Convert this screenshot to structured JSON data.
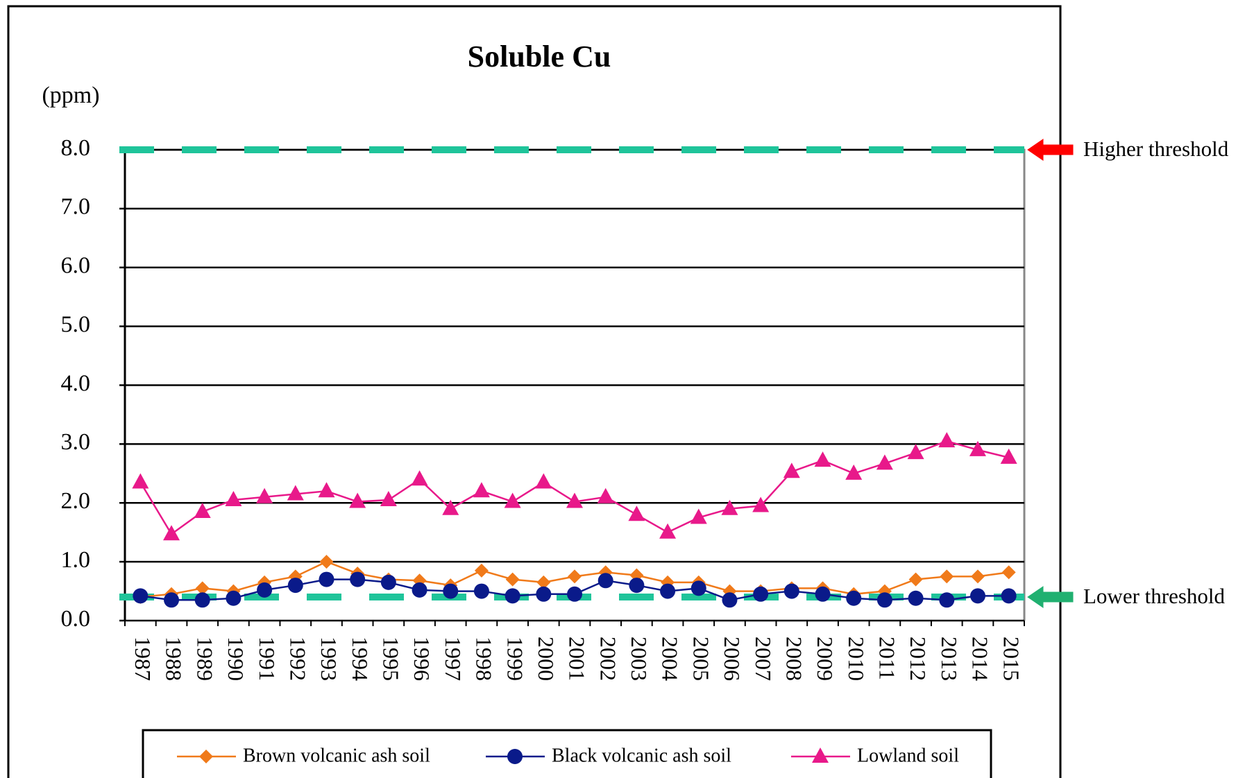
{
  "chart_data": {
    "type": "line",
    "title": "Soluble Cu",
    "y_label": "(ppm)",
    "categories": [
      "1987",
      "1988",
      "1989",
      "1990",
      "1991",
      "1992",
      "1993",
      "1994",
      "1995",
      "1996",
      "1997",
      "1998",
      "1999",
      "2000",
      "2001",
      "2002",
      "2003",
      "2004",
      "2005",
      "2006",
      "2007",
      "2008",
      "2009",
      "2010",
      "2011",
      "2012",
      "2013",
      "2014",
      "2015"
    ],
    "series": [
      {
        "name": "Brown volcanic ash soil",
        "color": "#f07a1a",
        "marker": "diamond",
        "values": [
          0.4,
          0.45,
          0.55,
          0.5,
          0.65,
          0.75,
          1.0,
          0.8,
          0.7,
          0.68,
          0.6,
          0.85,
          0.7,
          0.65,
          0.75,
          0.82,
          0.77,
          0.65,
          0.65,
          0.5,
          0.5,
          0.55,
          0.55,
          0.45,
          0.5,
          0.7,
          0.75,
          0.75,
          0.82
        ]
      },
      {
        "name": "Black volcanic ash soil",
        "color": "#0a1a8a",
        "marker": "circle",
        "values": [
          0.42,
          0.35,
          0.35,
          0.38,
          0.52,
          0.6,
          0.7,
          0.7,
          0.65,
          0.52,
          0.5,
          0.5,
          0.42,
          0.45,
          0.45,
          0.68,
          0.6,
          0.5,
          0.55,
          0.35,
          0.45,
          0.5,
          0.45,
          0.38,
          0.35,
          0.38,
          0.35,
          0.42,
          0.42
        ]
      },
      {
        "name": "Lowland soil",
        "color": "#e8198a",
        "marker": "triangle",
        "values": [
          2.35,
          1.47,
          1.85,
          2.05,
          2.1,
          2.15,
          2.2,
          2.02,
          2.05,
          2.4,
          1.9,
          2.2,
          2.02,
          2.35,
          2.02,
          2.1,
          1.8,
          1.5,
          1.75,
          1.9,
          1.95,
          2.53,
          2.72,
          2.5,
          2.67,
          2.85,
          3.05,
          2.9,
          2.77
        ]
      }
    ],
    "thresholds": [
      {
        "label": "Higher threshold",
        "value": 8.0,
        "color": "#ff0000",
        "arrow_color": "#ff0000"
      },
      {
        "label": "Lower threshold",
        "value": 0.4,
        "color": "#3030c0",
        "arrow_color": "#20b070"
      }
    ],
    "threshold_line_color": "#1fc49a",
    "ylim": [
      0,
      8
    ],
    "yticks": [
      {
        "value": 0,
        "label": "0.0"
      },
      {
        "value": 1,
        "label": "1.0"
      },
      {
        "value": 2,
        "label": "2.0"
      },
      {
        "value": 3,
        "label": "3.0"
      },
      {
        "value": 4,
        "label": "4.0"
      },
      {
        "value": 5,
        "label": "5.0"
      },
      {
        "value": 6,
        "label": "6.0"
      },
      {
        "value": 7,
        "label": "7.0"
      },
      {
        "value": 8,
        "label": "8.0"
      }
    ],
    "grid": true
  }
}
